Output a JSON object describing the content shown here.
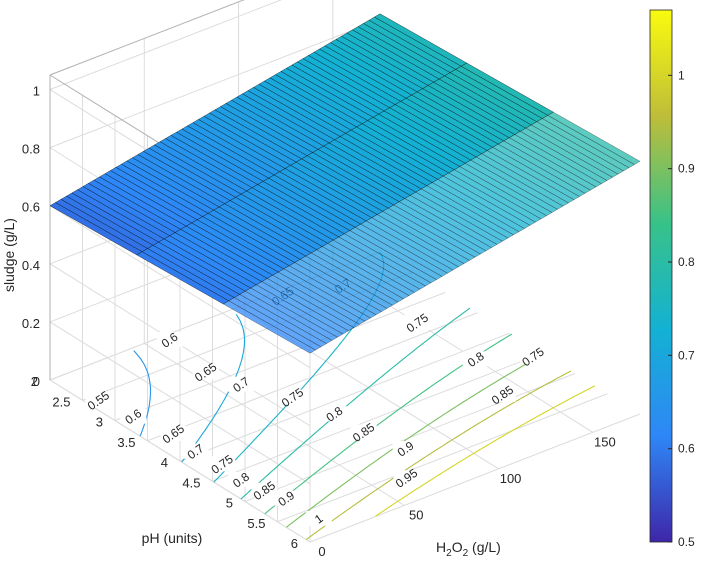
{
  "chart_data": {
    "type": "surface-contour-3d",
    "zlabel": "sludge (g/L)",
    "xlabel_pre": "H",
    "xlabel_sub": "2",
    "xlabel_mid": "O",
    "xlabel_sub2": "2",
    "xlabel_post": " (g/L)",
    "ylabel": "pH (units)",
    "x_ticks": [
      "0",
      "50",
      "100",
      "150"
    ],
    "y_ticks": [
      "2",
      "2.5",
      "3",
      "3.5",
      "4",
      "4.5",
      "5",
      "5.5",
      "6"
    ],
    "z_ticks": [
      "0",
      "0.2",
      "0.4",
      "0.6",
      "0.8",
      "1"
    ],
    "x_range": [
      0,
      175
    ],
    "y_range": [
      2,
      6
    ],
    "z_range": [
      0,
      1.05
    ],
    "surface_corners": [
      {
        "h2o2": 0,
        "ph": 2,
        "sludge": 0.6
      },
      {
        "h2o2": 175,
        "ph": 2,
        "sludge": 0.82
      },
      {
        "h2o2": 175,
        "ph": 6,
        "sludge": 0.87
      },
      {
        "h2o2": 0,
        "ph": 6,
        "sludge": 0.65
      }
    ],
    "surface_colormap": "parula",
    "contour_levels": [
      0.55,
      0.6,
      0.65,
      0.7,
      0.75,
      0.8,
      0.85,
      0.9,
      0.95,
      1.0
    ],
    "contour_labels": [
      {
        "text": "0.55",
        "h2o2": 5,
        "ph": 2.6
      },
      {
        "text": "0.6",
        "h2o2": 8,
        "ph": 3.05
      },
      {
        "text": "0.6",
        "h2o2": 60,
        "ph": 2.1
      },
      {
        "text": "0.65",
        "h2o2": 12,
        "ph": 3.55
      },
      {
        "text": "0.65",
        "h2o2": 55,
        "ph": 2.8
      },
      {
        "text": "0.65",
        "h2o2": 120,
        "ph": 2.1
      },
      {
        "text": "0.7",
        "h2o2": 10,
        "ph": 3.95
      },
      {
        "text": "0.7",
        "h2o2": 60,
        "ph": 3.2
      },
      {
        "text": "0.7",
        "h2o2": 145,
        "ph": 2.3
      },
      {
        "text": "0.75",
        "h2o2": 12,
        "ph": 4.3
      },
      {
        "text": "0.75",
        "h2o2": 70,
        "ph": 3.7
      },
      {
        "text": "0.75",
        "h2o2": 150,
        "ph": 3.3
      },
      {
        "text": "0.75",
        "h2o2": 170,
        "ph": 4.5
      },
      {
        "text": "0.8",
        "h2o2": 10,
        "ph": 4.65
      },
      {
        "text": "0.8",
        "h2o2": 75,
        "ph": 4.2
      },
      {
        "text": "0.8",
        "h2o2": 150,
        "ph": 4.2
      },
      {
        "text": "0.85",
        "h2o2": 12,
        "ph": 4.95
      },
      {
        "text": "0.85",
        "h2o2": 75,
        "ph": 4.65
      },
      {
        "text": "0.85",
        "h2o2": 140,
        "ph": 4.9
      },
      {
        "text": "0.9",
        "h2o2": 15,
        "ph": 5.2
      },
      {
        "text": "0.9",
        "h2o2": 80,
        "ph": 5.15
      },
      {
        "text": "0.95",
        "h2o2": 65,
        "ph": 5.6
      },
      {
        "text": "1",
        "h2o2": 15,
        "ph": 5.7
      }
    ],
    "colorbar": {
      "ticks": [
        "0.5",
        "0.6",
        "0.7",
        "0.8",
        "0.9",
        "1"
      ],
      "range": [
        0.5,
        1.07
      ]
    },
    "grid": true
  }
}
